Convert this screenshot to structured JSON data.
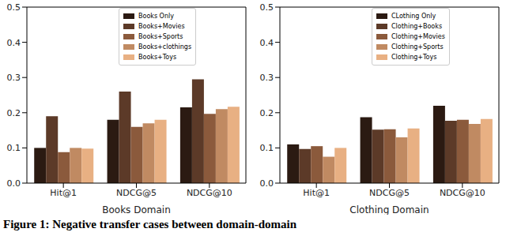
{
  "caption": "Figure 1: Negative transfer cases between domain-domain",
  "chart_data": [
    {
      "type": "bar",
      "xlabel": "Books Domain",
      "categories": [
        "Hit@1",
        "NDCG@5",
        "NDCG@10"
      ],
      "ylim": [
        0,
        0.5
      ],
      "yticks": [
        {
          "value": 0,
          "label": "0.0"
        },
        0.1,
        0.2,
        0.3,
        0.4,
        0.5
      ],
      "legend": "top",
      "series": [
        {
          "name": "Books Only",
          "color": "#2b1a12",
          "values": [
            0.1,
            0.18,
            0.215
          ]
        },
        {
          "name": "Books+Movies",
          "color": "#5c3a28",
          "values": [
            0.19,
            0.26,
            0.295
          ]
        },
        {
          "name": "Books+Sports",
          "color": "#8b5a3c",
          "values": [
            0.088,
            0.16,
            0.197
          ]
        },
        {
          "name": "Books+clothings",
          "color": "#c08a62",
          "values": [
            0.1,
            0.17,
            0.21
          ]
        },
        {
          "name": "Books+Toys",
          "color": "#e8b083",
          "values": [
            0.098,
            0.18,
            0.217
          ]
        }
      ]
    },
    {
      "type": "bar",
      "xlabel": "Clothing Domain",
      "categories": [
        "Hit@1",
        "NDCG@5",
        "NDCG@10"
      ],
      "ylim": [
        0,
        0.5
      ],
      "yticks": [
        {
          "value": 0,
          "label": "0.0"
        },
        0.1,
        0.2,
        0.3,
        0.4,
        0.5
      ],
      "legend": "top",
      "series": [
        {
          "name": "CLothing Only",
          "color": "#2b1a12",
          "values": [
            0.11,
            0.187,
            0.22
          ]
        },
        {
          "name": "Clothing+Books",
          "color": "#5c3a28",
          "values": [
            0.097,
            0.152,
            0.177
          ]
        },
        {
          "name": "Clothing+Movies",
          "color": "#8b5a3c",
          "values": [
            0.105,
            0.153,
            0.18
          ]
        },
        {
          "name": "Clothing+Sports",
          "color": "#c08a62",
          "values": [
            0.075,
            0.13,
            0.168
          ]
        },
        {
          "name": "Clothing+Toys",
          "color": "#e8b083",
          "values": [
            0.1,
            0.155,
            0.182
          ]
        }
      ]
    }
  ]
}
